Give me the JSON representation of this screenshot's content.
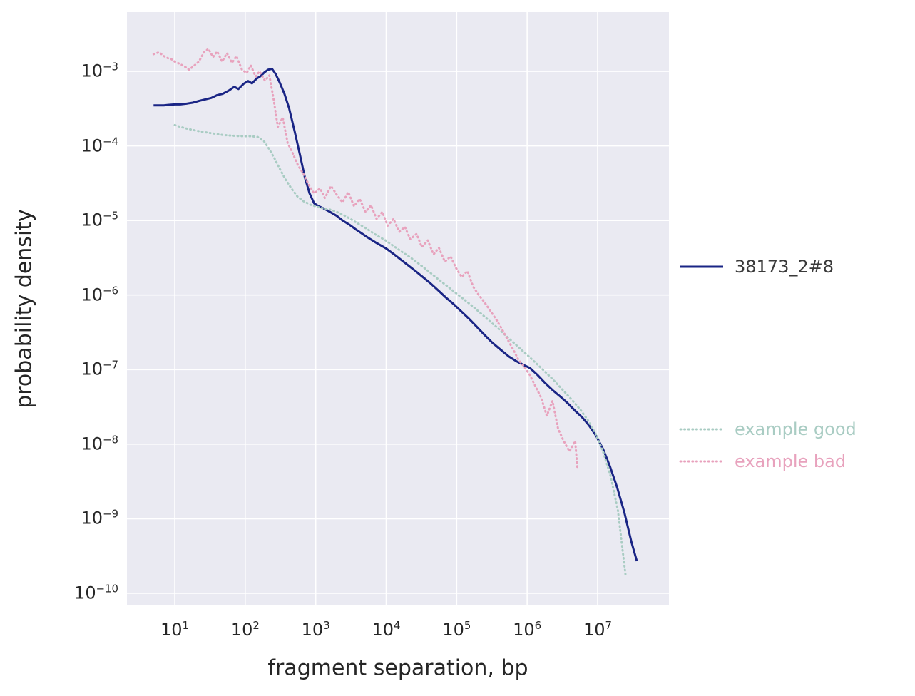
{
  "chart_data": {
    "type": "line",
    "title": "",
    "xlabel": "fragment separation, bp",
    "ylabel": "probability density",
    "x_scale": "log",
    "y_scale": "log",
    "xlim": [
      2.1,
      102000000
    ],
    "ylim": [
      6.9e-11,
      0.0062
    ],
    "x_tick_exponents": [
      1,
      2,
      3,
      4,
      5,
      6,
      7
    ],
    "y_tick_exponents": [
      -3,
      -4,
      -5,
      -6,
      -7,
      -8,
      -9,
      -10
    ],
    "grid": true,
    "legend_position": "right-outside",
    "colors": {
      "plot_background": "#eaeaf2",
      "grid": "#ffffff",
      "tick_text": "#262626",
      "axis_label_text": "#262626"
    },
    "series": [
      {
        "name": "38173_2#8",
        "color": "#1a2585",
        "style": "solid",
        "legend_text_color": "#3a3a3a",
        "points": [
          [
            5,
            0.00035
          ],
          [
            6,
            0.00035
          ],
          [
            7,
            0.00035
          ],
          [
            8,
            0.000355
          ],
          [
            10,
            0.00036
          ],
          [
            12,
            0.00036
          ],
          [
            15,
            0.00037
          ],
          [
            18,
            0.00038
          ],
          [
            22,
            0.0004
          ],
          [
            27,
            0.00042
          ],
          [
            33,
            0.00044
          ],
          [
            40,
            0.00048
          ],
          [
            48,
            0.0005
          ],
          [
            58,
            0.00055
          ],
          [
            70,
            0.00062
          ],
          [
            80,
            0.00058
          ],
          [
            95,
            0.00068
          ],
          [
            110,
            0.00074
          ],
          [
            125,
            0.00069
          ],
          [
            145,
            0.0008
          ],
          [
            165,
            0.00086
          ],
          [
            185,
            0.00096
          ],
          [
            210,
            0.00105
          ],
          [
            240,
            0.00108
          ],
          [
            270,
            0.00092
          ],
          [
            310,
            0.0007
          ],
          [
            360,
            0.0005
          ],
          [
            420,
            0.00032
          ],
          [
            500,
            0.00016
          ],
          [
            600,
            7.5e-05
          ],
          [
            700,
            3.8e-05
          ],
          [
            820,
            2.3e-05
          ],
          [
            950,
            1.7e-05
          ],
          [
            1100,
            1.55e-05
          ],
          [
            1300,
            1.45e-05
          ],
          [
            1600,
            1.3e-05
          ],
          [
            2000,
            1.15e-05
          ],
          [
            2400,
            1e-05
          ],
          [
            3000,
            8.8e-06
          ],
          [
            3700,
            7.6e-06
          ],
          [
            4500,
            6.7e-06
          ],
          [
            5500,
            5.9e-06
          ],
          [
            7000,
            5.1e-06
          ],
          [
            8500,
            4.6e-06
          ],
          [
            10000,
            4.2e-06
          ],
          [
            13000,
            3.5e-06
          ],
          [
            16000,
            3e-06
          ],
          [
            20000,
            2.55e-06
          ],
          [
            26000,
            2.1e-06
          ],
          [
            33000,
            1.75e-06
          ],
          [
            42000,
            1.45e-06
          ],
          [
            55000,
            1.15e-06
          ],
          [
            70000,
            9.3e-07
          ],
          [
            90000,
            7.6e-07
          ],
          [
            115000,
            6.1e-07
          ],
          [
            150000,
            4.8e-07
          ],
          [
            190000,
            3.8e-07
          ],
          [
            250000,
            2.9e-07
          ],
          [
            320000,
            2.3e-07
          ],
          [
            420000,
            1.85e-07
          ],
          [
            550000,
            1.5e-07
          ],
          [
            700000,
            1.3e-07
          ],
          [
            900000,
            1.15e-07
          ],
          [
            1100000,
            1.05e-07
          ],
          [
            1400000,
            8.5e-08
          ],
          [
            1800000,
            6.6e-08
          ],
          [
            2300000,
            5.3e-08
          ],
          [
            3000000,
            4.3e-08
          ],
          [
            3800000,
            3.5e-08
          ],
          [
            4800000,
            2.8e-08
          ],
          [
            6000000,
            2.3e-08
          ],
          [
            7500000,
            1.8e-08
          ],
          [
            9500000,
            1.3e-08
          ],
          [
            12000000,
            8.5e-09
          ],
          [
            15000000,
            5e-09
          ],
          [
            19000000,
            2.6e-09
          ],
          [
            24000000,
            1.2e-09
          ],
          [
            30000000,
            5e-10
          ],
          [
            36000000,
            2.7e-10
          ]
        ]
      },
      {
        "name": "example good",
        "color": "#a9ccc3",
        "style": "dotted",
        "legend_text_color": "#a9ccc3",
        "points": [
          [
            10,
            0.00019
          ],
          [
            12,
            0.00018
          ],
          [
            15,
            0.00017
          ],
          [
            19,
            0.000162
          ],
          [
            24,
            0.000155
          ],
          [
            30,
            0.00015
          ],
          [
            38,
            0.000145
          ],
          [
            48,
            0.00014
          ],
          [
            60,
            0.000138
          ],
          [
            75,
            0.000136
          ],
          [
            95,
            0.000135
          ],
          [
            120,
            0.000135
          ],
          [
            150,
            0.000132
          ],
          [
            185,
            0.000115
          ],
          [
            220,
            9e-05
          ],
          [
            260,
            6.8e-05
          ],
          [
            310,
            4.9e-05
          ],
          [
            370,
            3.6e-05
          ],
          [
            450,
            2.7e-05
          ],
          [
            550,
            2.1e-05
          ],
          [
            680,
            1.8e-05
          ],
          [
            850,
            1.62e-05
          ],
          [
            1050,
            1.52e-05
          ],
          [
            1300,
            1.45e-05
          ],
          [
            1600,
            1.4e-05
          ],
          [
            2000,
            1.3e-05
          ],
          [
            2500,
            1.18e-05
          ],
          [
            3100,
            1.05e-05
          ],
          [
            3900,
            9.2e-06
          ],
          [
            4900,
            8.1e-06
          ],
          [
            6200,
            7e-06
          ],
          [
            7800,
            6.1e-06
          ],
          [
            9800,
            5.4e-06
          ],
          [
            12500,
            4.6e-06
          ],
          [
            16000,
            3.9e-06
          ],
          [
            20000,
            3.4e-06
          ],
          [
            26000,
            2.85e-06
          ],
          [
            33000,
            2.4e-06
          ],
          [
            42000,
            2e-06
          ],
          [
            54000,
            1.65e-06
          ],
          [
            69000,
            1.38e-06
          ],
          [
            88000,
            1.15e-06
          ],
          [
            112000,
            9.6e-07
          ],
          [
            143000,
            8e-07
          ],
          [
            183000,
            6.6e-07
          ],
          [
            234000,
            5.4e-07
          ],
          [
            300000,
            4.4e-07
          ],
          [
            383000,
            3.6e-07
          ],
          [
            490000,
            2.9e-07
          ],
          [
            626000,
            2.35e-07
          ],
          [
            800000,
            1.9e-07
          ],
          [
            1020000,
            1.55e-07
          ],
          [
            1300000,
            1.25e-07
          ],
          [
            1670000,
            1e-07
          ],
          [
            2130000,
            8e-08
          ],
          [
            2720000,
            6.3e-08
          ],
          [
            3480000,
            4.9e-08
          ],
          [
            4450000,
            3.8e-08
          ],
          [
            5690000,
            2.9e-08
          ],
          [
            7270000,
            2.1e-08
          ],
          [
            9300000,
            1.4e-08
          ],
          [
            11900000,
            8e-09
          ],
          [
            15200000,
            3.8e-09
          ],
          [
            19400000,
            1.3e-09
          ],
          [
            24800000,
            1.8e-10
          ]
        ]
      },
      {
        "name": "example bad",
        "color": "#e8a2bd",
        "style": "dotted",
        "legend_text_color": "#e8a2bd",
        "points": [
          [
            5,
            0.0017
          ],
          [
            6,
            0.0018
          ],
          [
            7,
            0.0016
          ],
          [
            8,
            0.0015
          ],
          [
            9,
            0.00145
          ],
          [
            10,
            0.00135
          ],
          [
            12,
            0.00125
          ],
          [
            14,
            0.00115
          ],
          [
            16,
            0.00105
          ],
          [
            19,
            0.0012
          ],
          [
            22,
            0.00135
          ],
          [
            26,
            0.0018
          ],
          [
            30,
            0.002
          ],
          [
            35,
            0.00155
          ],
          [
            40,
            0.00185
          ],
          [
            47,
            0.00135
          ],
          [
            55,
            0.00175
          ],
          [
            65,
            0.0013
          ],
          [
            75,
            0.0016
          ],
          [
            90,
            0.00105
          ],
          [
            105,
            0.00095
          ],
          [
            120,
            0.0012
          ],
          [
            140,
            0.00085
          ],
          [
            160,
            0.001
          ],
          [
            190,
            0.00075
          ],
          [
            220,
            0.00088
          ],
          [
            250,
            0.00045
          ],
          [
            290,
            0.00018
          ],
          [
            340,
            0.00024
          ],
          [
            400,
            0.00011
          ],
          [
            470,
            8e-05
          ],
          [
            560,
            5.5e-05
          ],
          [
            670,
            4.2e-05
          ],
          [
            800,
            3e-05
          ],
          [
            950,
            2.3e-05
          ],
          [
            1150,
            2.7e-05
          ],
          [
            1350,
            2e-05
          ],
          [
            1650,
            2.9e-05
          ],
          [
            2000,
            2.2e-05
          ],
          [
            2400,
            1.75e-05
          ],
          [
            2900,
            2.4e-05
          ],
          [
            3500,
            1.55e-05
          ],
          [
            4200,
            1.95e-05
          ],
          [
            5100,
            1.3e-05
          ],
          [
            6100,
            1.6e-05
          ],
          [
            7300,
            1.05e-05
          ],
          [
            8800,
            1.3e-05
          ],
          [
            10500,
            8.5e-06
          ],
          [
            12700,
            1.05e-05
          ],
          [
            15300,
            7e-06
          ],
          [
            18400,
            8.2e-06
          ],
          [
            22000,
            5.6e-06
          ],
          [
            27000,
            6.6e-06
          ],
          [
            32000,
            4.4e-06
          ],
          [
            39000,
            5.4e-06
          ],
          [
            47000,
            3.5e-06
          ],
          [
            56000,
            4.3e-06
          ],
          [
            68000,
            2.8e-06
          ],
          [
            82000,
            3.3e-06
          ],
          [
            98000,
            2.3e-06
          ],
          [
            118000,
            1.75e-06
          ],
          [
            142000,
            2.1e-06
          ],
          [
            171000,
            1.3e-06
          ],
          [
            206000,
            1e-06
          ],
          [
            248000,
            8e-07
          ],
          [
            298000,
            6.2e-07
          ],
          [
            359000,
            4.8e-07
          ],
          [
            432000,
            3.6e-07
          ],
          [
            520000,
            2.6e-07
          ],
          [
            626000,
            1.9e-07
          ],
          [
            753000,
            1.35e-07
          ],
          [
            906000,
            1.1e-07
          ],
          [
            1090000,
            8.5e-08
          ],
          [
            1310000,
            6e-08
          ],
          [
            1580000,
            4.2e-08
          ],
          [
            1900000,
            2.4e-08
          ],
          [
            2290000,
            3.8e-08
          ],
          [
            2750000,
            1.6e-08
          ],
          [
            3310000,
            1.1e-08
          ],
          [
            3990000,
            8e-09
          ],
          [
            4800000,
            1.1e-08
          ],
          [
            5200000,
            4.5e-09
          ]
        ]
      }
    ]
  }
}
